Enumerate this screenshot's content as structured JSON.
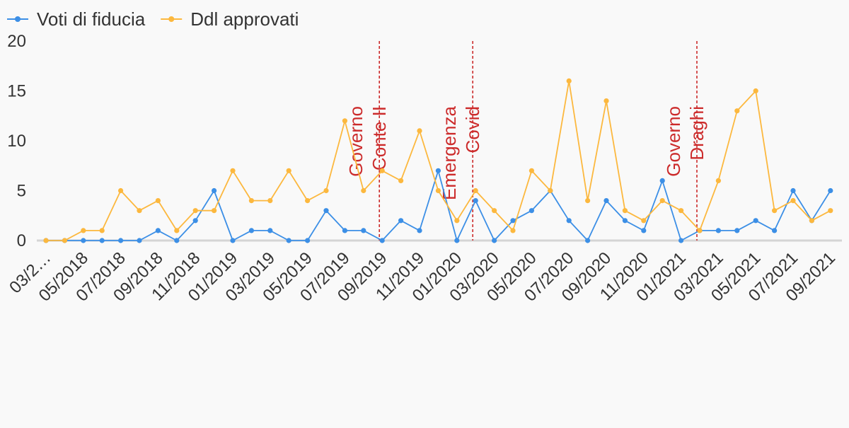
{
  "chart_data": {
    "type": "line",
    "title": "",
    "xlabel": "",
    "ylabel": "",
    "ylim": [
      0,
      20
    ],
    "yticks": [
      0,
      5,
      10,
      15,
      20
    ],
    "grid": false,
    "legend_position": "top-left",
    "x_tick_labels": [
      "03/2…",
      "05/2018",
      "07/2018",
      "09/2018",
      "11/2018",
      "01/2019",
      "03/2019",
      "05/2019",
      "07/2019",
      "09/2019",
      "11/2019",
      "01/2020",
      "03/2020",
      "05/2020",
      "07/2020",
      "09/2020",
      "11/2020",
      "01/2021",
      "03/2021",
      "05/2021",
      "07/2021",
      "09/2021"
    ],
    "x": [
      "03/2018",
      "04/2018",
      "05/2018",
      "06/2018",
      "07/2018",
      "08/2018",
      "09/2018",
      "10/2018",
      "11/2018",
      "12/2018",
      "01/2019",
      "02/2019",
      "03/2019",
      "04/2019",
      "05/2019",
      "06/2019",
      "07/2019",
      "08/2019",
      "09/2019",
      "10/2019",
      "11/2019",
      "12/2019",
      "01/2020",
      "02/2020",
      "03/2020",
      "04/2020",
      "05/2020",
      "06/2020",
      "07/2020",
      "08/2020",
      "09/2020",
      "10/2020",
      "11/2020",
      "12/2020",
      "01/2021",
      "02/2021",
      "03/2021",
      "04/2021",
      "05/2021",
      "06/2021",
      "07/2021",
      "08/2021",
      "09/2021"
    ],
    "series": [
      {
        "name": "Voti di fiducia",
        "color": "#3c8fe6",
        "values": [
          0,
          0,
          0,
          0,
          0,
          0,
          1,
          0,
          2,
          5,
          0,
          1,
          1,
          0,
          0,
          3,
          1,
          1,
          0,
          2,
          1,
          7,
          0,
          4,
          0,
          2,
          3,
          5,
          2,
          0,
          4,
          2,
          1,
          6,
          0,
          1,
          1,
          1,
          2,
          1,
          5,
          2,
          5
        ]
      },
      {
        "name": "Ddl approvati",
        "color": "#fcb83e",
        "values": [
          0,
          0,
          1,
          1,
          5,
          3,
          4,
          1,
          3,
          3,
          7,
          4,
          4,
          7,
          4,
          5,
          12,
          5,
          7,
          6,
          11,
          5,
          2,
          5,
          3,
          1,
          7,
          5,
          16,
          4,
          14,
          3,
          2,
          4,
          3,
          1,
          6,
          13,
          15,
          3,
          4,
          2,
          3
        ]
      }
    ],
    "annotations": [
      {
        "lines": [
          "Governo",
          "Conte II"
        ],
        "x": "09/2019",
        "color": "#cc2b2b"
      },
      {
        "lines": [
          "Emergenza",
          "Covid"
        ],
        "x": "02/2020",
        "color": "#cc2b2b"
      },
      {
        "lines": [
          "Governo",
          "Draghi"
        ],
        "x": "02/2021",
        "color": "#cc2b2b"
      }
    ]
  }
}
